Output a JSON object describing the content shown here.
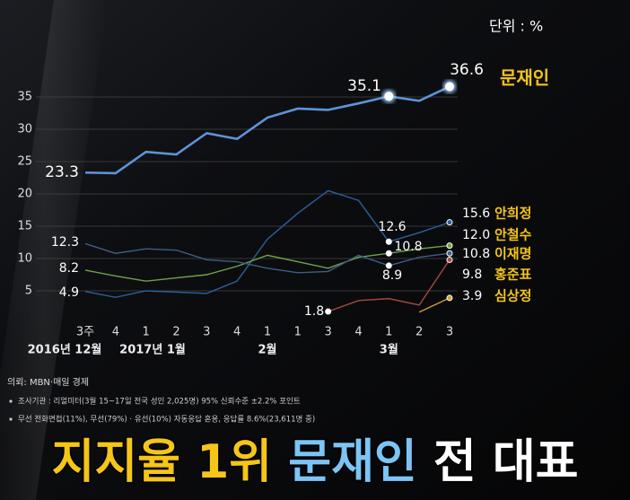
{
  "chart_data": {
    "type": "line",
    "unit_label": "단위 : %",
    "categories": [
      "3주",
      "4",
      "1",
      "2",
      "3",
      "4",
      "1",
      "1",
      "3",
      "4",
      "1",
      "2",
      "3"
    ],
    "groups": [
      "2016년 12월",
      "2017년 1월",
      "2월",
      "3월"
    ],
    "ylim": [
      0,
      38
    ],
    "yticks": [
      5,
      10,
      15,
      20,
      25,
      30,
      35
    ],
    "grid": true,
    "series": [
      {
        "name": "문재인",
        "color": "#5e93d8",
        "values": [
          23.3,
          23.2,
          26.5,
          26.1,
          29.4,
          28.5,
          31.8,
          33.2,
          33.0,
          34.0,
          35.1,
          34.4,
          36.6
        ],
        "value_labels": [
          "23.3",
          null,
          null,
          null,
          null,
          null,
          null,
          null,
          null,
          null,
          "35.1",
          null,
          "36.6"
        ]
      },
      {
        "name": "안희정",
        "color": "#2a5f9e",
        "values": [
          4.9,
          4.0,
          5.0,
          4.8,
          4.6,
          6.5,
          13.0,
          17.0,
          20.5,
          19.0,
          12.6,
          14.0,
          15.6
        ],
        "value_labels": [
          "4.9",
          null,
          null,
          null,
          null,
          null,
          null,
          null,
          null,
          null,
          "12.6",
          null,
          "15.6"
        ]
      },
      {
        "name": "안철수",
        "color": "#6fa34a",
        "values": [
          8.2,
          7.3,
          6.5,
          7.0,
          7.5,
          8.8,
          10.5,
          9.5,
          8.5,
          10.2,
          10.8,
          11.5,
          12.0
        ],
        "value_labels": [
          "8.2",
          null,
          null,
          null,
          null,
          null,
          null,
          null,
          null,
          null,
          "10.8",
          null,
          "12.0"
        ]
      },
      {
        "name": "이재명",
        "color": "#3d5f85",
        "values": [
          12.3,
          10.8,
          11.5,
          11.3,
          9.8,
          9.5,
          8.5,
          7.8,
          8.0,
          10.5,
          8.9,
          10.2,
          10.8
        ],
        "value_labels": [
          "12.3",
          null,
          null,
          null,
          null,
          null,
          null,
          null,
          null,
          null,
          "8.9",
          null,
          "10.8"
        ]
      },
      {
        "name": "홍준표",
        "color": "#a34a3c",
        "values": [
          null,
          null,
          null,
          null,
          null,
          null,
          null,
          null,
          1.8,
          3.5,
          3.8,
          2.8,
          9.8
        ],
        "value_labels": [
          null,
          null,
          null,
          null,
          null,
          null,
          null,
          null,
          "1.8",
          null,
          null,
          null,
          "9.8"
        ]
      },
      {
        "name": "심상정",
        "color": "#c9a23c",
        "values": [
          null,
          null,
          null,
          null,
          null,
          null,
          null,
          null,
          null,
          null,
          null,
          1.7,
          3.9
        ],
        "value_labels": [
          null,
          null,
          null,
          null,
          null,
          null,
          null,
          null,
          null,
          null,
          null,
          null,
          "3.9"
        ]
      }
    ]
  },
  "source": {
    "title": "의뢰: MBN·매일 경제",
    "notes": [
      "조사기관 : 리얼미터(3월 15~17일 전국 성인 2,025명) 95% 신뢰수준  ±2.2% 포인트",
      "무선 전화면접(11%), 무선(79%) · 유선(10%) 자동응답 혼용, 응답률 8.6%(23,611명 중)"
    ]
  },
  "caption": [
    "지지율 1위",
    "문재인",
    "전 대표"
  ]
}
